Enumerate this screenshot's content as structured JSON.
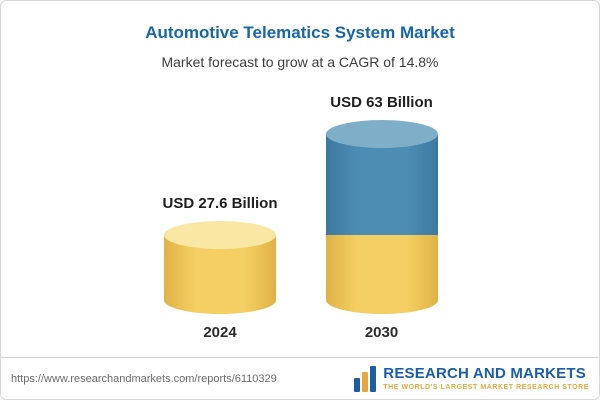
{
  "header": {
    "title": "Automotive Telematics System Market",
    "subtitle": "Market forecast to grow at a CAGR of 14.8%"
  },
  "chart_data": {
    "type": "bar",
    "subtype": "3d-cylinder",
    "title": "Automotive Telematics System Market",
    "subtitle": "Market forecast to grow at a CAGR of 14.8%",
    "unit": "USD Billion",
    "cagr": "14.8%",
    "categories": [
      "2024",
      "2030"
    ],
    "values": [
      27.6,
      63
    ],
    "data_labels": [
      "USD 27.6 Billion",
      "USD 63 Billion"
    ],
    "ylim": [
      0,
      63
    ],
    "grid": false,
    "legend": false,
    "bars": [
      {
        "category": "2024",
        "label": "USD 27.6 Billion",
        "segments": [
          {
            "value": 27.6,
            "color": "#F4CF63",
            "edge": "#E0B246",
            "cap": "#F9E7A3"
          }
        ]
      },
      {
        "category": "2030",
        "label": "USD 63 Billion",
        "segments": [
          {
            "value": 27.6,
            "color": "#F4CF63",
            "edge": "#E0B246",
            "cap": ""
          },
          {
            "value": 35.4,
            "color": "#4E8DB3",
            "edge": "#3C79A1",
            "cap": "#7FAEC9"
          }
        ]
      }
    ]
  },
  "footer": {
    "url": "https://www.researchandmarkets.com/reports/6110329",
    "brand": "RESEARCH AND MARKETS",
    "tagline": "THE WORLD'S LARGEST MARKET RESEARCH STORE"
  },
  "colors": {
    "title_blue": "#1566AC",
    "brand_blue": "#1A5DA8",
    "brand_gold": "#E9A63C",
    "bar_yellow": "#F4CF63",
    "bar_blue": "#4E8DB3"
  }
}
